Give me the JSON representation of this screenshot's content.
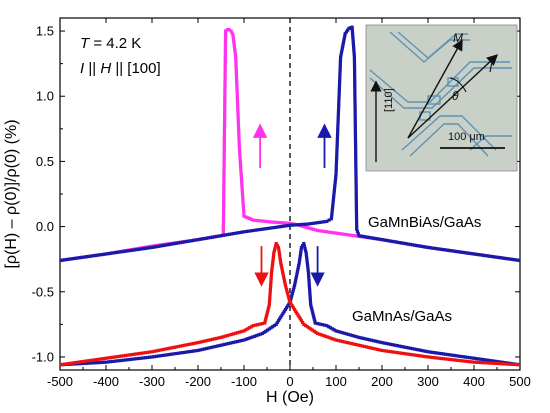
{
  "chart_data": {
    "type": "line",
    "xlabel": "H (Oe)",
    "ylabel": "[ρ(H) – ρ(0)]/ρ(0) (%)",
    "xlim": [
      -500,
      500
    ],
    "ylim": [
      -1.1,
      1.6
    ],
    "xticks": [
      -500,
      -400,
      -300,
      -200,
      -100,
      0,
      100,
      200,
      300,
      400,
      500
    ],
    "yticks": [
      -1.0,
      -0.5,
      0.0,
      0.5,
      1.0,
      1.5
    ],
    "xtick_labels": [
      "-500",
      "-400",
      "-300",
      "-200",
      "-100",
      "0",
      "100",
      "200",
      "300",
      "400",
      "500"
    ],
    "ytick_labels": [
      "-1.0",
      "-0.5",
      "0.0",
      "0.5",
      "1.0",
      "1.5"
    ],
    "grid": false,
    "zero_line": "dashed vertical at H = 0",
    "annotation_lines": [
      {
        "prefix": "T",
        "text": " = 4.2 K"
      },
      {
        "prefix": "I",
        "mid": " || ",
        "mid2": "H",
        "text": " || [100]"
      }
    ],
    "sample_labels": [
      "GaMnBiAs/GaAs",
      "GaMnAs/GaAs"
    ],
    "colors": {
      "magenta": "#ff33ee",
      "blue": "#1a1aaa",
      "red": "#ee1111",
      "lightblue": "#3355ee"
    },
    "series": [
      {
        "color_key": "magenta",
        "sample": "GaMnBiAs/GaAs",
        "sweep": "down",
        "x": [
          500,
          400,
          300,
          200,
          100,
          60,
          20,
          0,
          -40,
          -80,
          -100,
          -110,
          -118,
          -124,
          -128,
          -132,
          -136,
          -140,
          -145,
          -150,
          -200,
          -300,
          -400,
          -500
        ],
        "y": [
          -0.26,
          -0.21,
          -0.16,
          -0.1,
          -0.05,
          -0.03,
          0.01,
          0.025,
          0.035,
          0.05,
          0.08,
          0.6,
          1.3,
          1.47,
          1.5,
          1.51,
          1.51,
          1.5,
          -0.06,
          -0.07,
          -0.1,
          -0.15,
          -0.21,
          -0.26
        ]
      },
      {
        "color_key": "blue",
        "sample": "GaMnBiAs/GaAs",
        "sweep": "up",
        "x": [
          -500,
          -400,
          -300,
          -200,
          -150,
          -100,
          -60,
          0,
          40,
          80,
          90,
          100,
          110,
          120,
          128,
          135,
          140,
          145,
          150,
          200,
          300,
          400,
          500
        ],
        "y": [
          -0.26,
          -0.21,
          -0.16,
          -0.1,
          -0.07,
          -0.04,
          -0.02,
          0.01,
          0.02,
          0.04,
          0.06,
          0.4,
          1.3,
          1.48,
          1.52,
          1.53,
          1.3,
          -0.02,
          -0.07,
          -0.1,
          -0.16,
          -0.21,
          -0.26
        ]
      },
      {
        "color_key": "blue",
        "sample": "GaMnAs/GaAs",
        "sweep": "up",
        "x": [
          -500,
          -400,
          -300,
          -200,
          -100,
          -60,
          -30,
          0,
          10,
          20,
          25,
          30,
          35,
          40,
          45,
          55,
          80,
          100,
          150,
          200,
          300,
          400,
          500
        ],
        "y": [
          -1.06,
          -1.04,
          -1.0,
          -0.95,
          -0.87,
          -0.82,
          -0.75,
          -0.58,
          -0.45,
          -0.28,
          -0.16,
          -0.13,
          -0.2,
          -0.35,
          -0.6,
          -0.74,
          -0.76,
          -0.8,
          -0.85,
          -0.89,
          -0.96,
          -1.01,
          -1.06
        ]
      },
      {
        "color_key": "red",
        "sample": "GaMnAs/GaAs",
        "sweep": "down",
        "x": [
          500,
          400,
          300,
          200,
          100,
          60,
          30,
          0,
          -10,
          -20,
          -25,
          -30,
          -35,
          -40,
          -45,
          -55,
          -80,
          -100,
          -150,
          -200,
          -300,
          -400,
          -500
        ],
        "y": [
          -1.06,
          -1.04,
          -1.0,
          -0.95,
          -0.87,
          -0.82,
          -0.75,
          -0.58,
          -0.45,
          -0.28,
          -0.16,
          -0.13,
          -0.2,
          -0.35,
          -0.6,
          -0.74,
          -0.76,
          -0.8,
          -0.85,
          -0.89,
          -0.96,
          -1.01,
          -1.06
        ]
      }
    ],
    "arrows": [
      {
        "color_key": "magenta",
        "x": -65,
        "y_from": 0.45,
        "y_to": 0.75,
        "direction": "up"
      },
      {
        "color_key": "blue",
        "x": 75,
        "y_from": 0.45,
        "y_to": 0.75,
        "direction": "up"
      },
      {
        "color_key": "red",
        "x": -62,
        "y_from": -0.15,
        "y_to": -0.42,
        "direction": "down"
      },
      {
        "color_key": "blue",
        "x": 60,
        "y_from": -0.15,
        "y_to": -0.42,
        "direction": "down"
      }
    ],
    "inset": {
      "labels": {
        "m": "M",
        "i": "I",
        "theta": "θ",
        "direction": "[110]",
        "scale": "100 μm"
      }
    }
  }
}
